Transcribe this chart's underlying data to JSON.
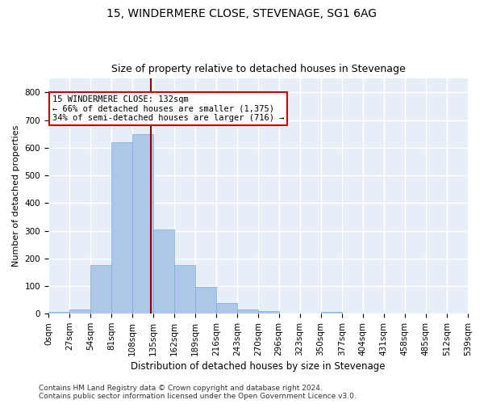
{
  "title": "15, WINDERMERE CLOSE, STEVENAGE, SG1 6AG",
  "subtitle": "Size of property relative to detached houses in Stevenage",
  "xlabel": "Distribution of detached houses by size in Stevenage",
  "ylabel": "Number of detached properties",
  "bin_edges": [
    0,
    27,
    54,
    81,
    108,
    135,
    162,
    189,
    216,
    243,
    270,
    296,
    323,
    350,
    377,
    404,
    431,
    458,
    485,
    512,
    539
  ],
  "bar_heights": [
    5,
    15,
    175,
    620,
    650,
    305,
    175,
    97,
    38,
    15,
    10,
    0,
    0,
    5,
    0,
    0,
    0,
    0,
    0,
    0
  ],
  "bar_color": "#aec6e8",
  "bar_edge_color": "#7bafd4",
  "property_size": 132,
  "vline_color": "#8b0000",
  "annotation_text": "15 WINDERMERE CLOSE: 132sqm\n← 66% of detached houses are smaller (1,375)\n34% of semi-detached houses are larger (716) →",
  "annotation_box_color": "white",
  "annotation_box_edge_color": "#cc0000",
  "ylim": [
    0,
    850
  ],
  "yticks": [
    0,
    100,
    200,
    300,
    400,
    500,
    600,
    700,
    800
  ],
  "background_color": "#e8eef7",
  "grid_color": "white",
  "footer_text": "Contains HM Land Registry data © Crown copyright and database right 2024.\nContains public sector information licensed under the Open Government Licence v3.0.",
  "title_fontsize": 10,
  "subtitle_fontsize": 9,
  "xlabel_fontsize": 8.5,
  "ylabel_fontsize": 8,
  "tick_fontsize": 7.5,
  "annotation_fontsize": 7.5,
  "footer_fontsize": 6.5
}
